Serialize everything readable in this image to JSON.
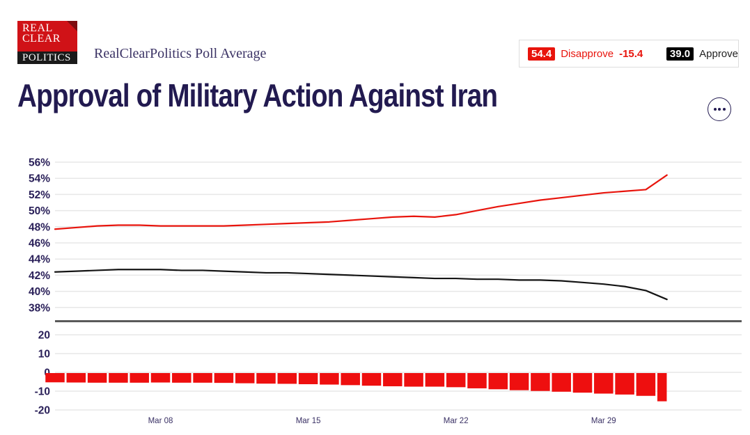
{
  "header": {
    "logo": {
      "line1": "REAL",
      "line2": "CLEAR",
      "line3": "POLITICS"
    },
    "subtitle": "RealClearPolitics Poll Average",
    "legend": {
      "disapprove_value": "54.4",
      "disapprove_label": "Disapprove",
      "spread_value": "-15.4",
      "approve_value": "39.0",
      "approve_label": "Approve"
    }
  },
  "title": "Approval of Military Action Against Iran",
  "colors": {
    "red": "#e8140c",
    "black": "#141414",
    "navy": "#2a2059",
    "grid": "#e7e7e7",
    "divider": "#595959",
    "bar": "#ee0f0f",
    "date_label": "#393064"
  },
  "chart_data": {
    "type": "line",
    "title": "Approval of Military Action Against Iran",
    "x": [
      "Mar 03",
      "Mar 04",
      "Mar 05",
      "Mar 06",
      "Mar 07",
      "Mar 08",
      "Mar 09",
      "Mar 10",
      "Mar 11",
      "Mar 12",
      "Mar 13",
      "Mar 14",
      "Mar 15",
      "Mar 16",
      "Mar 17",
      "Mar 18",
      "Mar 19",
      "Mar 20",
      "Mar 21",
      "Mar 22",
      "Mar 23",
      "Mar 24",
      "Mar 25",
      "Mar 26",
      "Mar 27",
      "Mar 28",
      "Mar 29",
      "Mar 30",
      "Mar 31",
      "Apr 01"
    ],
    "x_tick_labels": [
      "Mar 08",
      "Mar 15",
      "Mar 22",
      "Mar 29"
    ],
    "x_tick_indices": [
      5,
      12,
      19,
      26
    ],
    "series": [
      {
        "name": "Disapprove",
        "color": "#e8140c",
        "values": [
          47.7,
          47.9,
          48.1,
          48.2,
          48.2,
          48.1,
          48.1,
          48.1,
          48.1,
          48.2,
          48.3,
          48.4,
          48.5,
          48.6,
          48.8,
          49.0,
          49.2,
          49.3,
          49.2,
          49.5,
          50.0,
          50.5,
          50.9,
          51.3,
          51.6,
          51.9,
          52.2,
          52.4,
          52.6,
          54.4
        ]
      },
      {
        "name": "Approve",
        "color": "#141414",
        "values": [
          42.4,
          42.5,
          42.6,
          42.7,
          42.7,
          42.7,
          42.6,
          42.6,
          42.5,
          42.4,
          42.3,
          42.3,
          42.2,
          42.1,
          42.0,
          41.9,
          41.8,
          41.7,
          41.6,
          41.6,
          41.5,
          41.5,
          41.4,
          41.4,
          41.3,
          41.1,
          40.9,
          40.6,
          40.1,
          39.0
        ]
      }
    ],
    "spread_bars": {
      "name": "Spread (Approve - Disapprove)",
      "type": "bar",
      "color": "#ee0f0f",
      "values": [
        -5.3,
        -5.4,
        -5.5,
        -5.5,
        -5.5,
        -5.4,
        -5.5,
        -5.5,
        -5.6,
        -5.8,
        -6.0,
        -6.1,
        -6.3,
        -6.5,
        -6.8,
        -7.1,
        -7.4,
        -7.6,
        -7.6,
        -7.9,
        -8.5,
        -9.0,
        -9.5,
        -9.9,
        -10.3,
        -10.8,
        -11.3,
        -11.8,
        -12.5,
        -15.4
      ]
    },
    "top_axis": {
      "tick_values": [
        56,
        54,
        52,
        50,
        48,
        46,
        44,
        42,
        40,
        38
      ],
      "suffix": "%",
      "ylim": [
        37,
        57
      ]
    },
    "bottom_axis": {
      "tick_values": [
        20,
        10,
        0,
        -10,
        -20
      ],
      "suffix": "",
      "ylim": [
        -25,
        25
      ]
    },
    "grid": true,
    "legend_position": "top-right"
  }
}
